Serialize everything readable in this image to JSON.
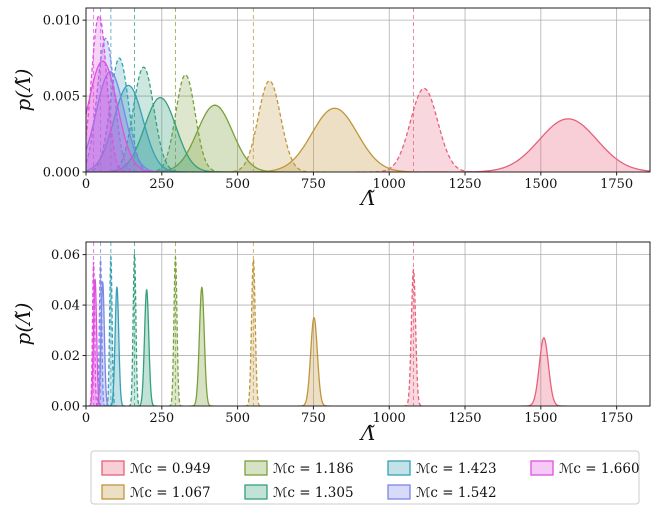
{
  "chart_data": [
    {
      "type": "area",
      "panel": "top",
      "xlabel": "Λ̃",
      "ylabel": "p(Λ̃)",
      "xlim": [
        0,
        1860
      ],
      "ylim": [
        0,
        0.0108
      ],
      "xticks": [
        0,
        250,
        500,
        750,
        1000,
        1250,
        1500,
        1750
      ],
      "yticks": [
        0.0,
        0.005,
        0.01
      ],
      "ytick_labels": [
        "0.000",
        "0.005",
        "0.010"
      ],
      "grid": true,
      "series": [
        {
          "name": "ℳc = 0.949",
          "color": "#e8607a",
          "true_value": 1080,
          "solid": {
            "mu": 1590,
            "sigma": 95,
            "peak": 0.0035
          },
          "dashed": {
            "mu": 1115,
            "sigma": 45,
            "peak": 0.0055
          }
        },
        {
          "name": "ℳc = 1.067",
          "color": "#c0963c",
          "true_value": 552,
          "solid": {
            "mu": 820,
            "sigma": 75,
            "peak": 0.0042
          },
          "dashed": {
            "mu": 605,
            "sigma": 37,
            "peak": 0.006
          }
        },
        {
          "name": "ℳc = 1.186",
          "color": "#7aa03a",
          "true_value": 295,
          "solid": {
            "mu": 425,
            "sigma": 58,
            "peak": 0.0044
          },
          "dashed": {
            "mu": 328,
            "sigma": 32,
            "peak": 0.0064
          }
        },
        {
          "name": "ℳc = 1.305",
          "color": "#34a07e",
          "true_value": 160,
          "solid": {
            "mu": 245,
            "sigma": 52,
            "peak": 0.0049
          },
          "dashed": {
            "mu": 190,
            "sigma": 34,
            "peak": 0.0069
          }
        },
        {
          "name": "ℳc = 1.423",
          "color": "#36a0b4",
          "true_value": 82,
          "solid": {
            "mu": 140,
            "sigma": 48,
            "peak": 0.0057
          },
          "dashed": {
            "mu": 110,
            "sigma": 30,
            "peak": 0.0075
          }
        },
        {
          "name": "ℳc = 1.542",
          "color": "#7a86e8",
          "true_value": 48,
          "solid": {
            "mu": 80,
            "sigma": 46,
            "peak": 0.0066
          },
          "dashed": {
            "mu": 65,
            "sigma": 28,
            "peak": 0.0088
          }
        },
        {
          "name": "ℳc = 1.660",
          "color": "#e050e0",
          "true_value": 25,
          "solid": {
            "mu": 55,
            "sigma": 48,
            "peak": 0.0073
          },
          "dashed": {
            "mu": 43,
            "sigma": 25,
            "peak": 0.0103
          }
        }
      ]
    },
    {
      "type": "area",
      "panel": "bottom",
      "xlabel": "Λ̃",
      "ylabel": "p(Λ̃)",
      "xlim": [
        0,
        1860
      ],
      "ylim": [
        0,
        0.065
      ],
      "xticks": [
        0,
        250,
        500,
        750,
        1000,
        1250,
        1500,
        1750
      ],
      "yticks": [
        0.0,
        0.02,
        0.04,
        0.06
      ],
      "ytick_labels": [
        "0.00",
        "0.02",
        "0.04",
        "0.06"
      ],
      "grid": true,
      "series": [
        {
          "name": "ℳc = 0.949",
          "color": "#e8607a",
          "true_value": 1080,
          "solid": {
            "mu": 1510,
            "sigma": 15,
            "peak": 0.027
          },
          "dashed": {
            "mu": 1080,
            "sigma": 7,
            "peak": 0.054
          }
        },
        {
          "name": "ℳc = 1.067",
          "color": "#c0963c",
          "true_value": 552,
          "solid": {
            "mu": 752,
            "sigma": 11,
            "peak": 0.035
          },
          "dashed": {
            "mu": 552,
            "sigma": 6,
            "peak": 0.058
          }
        },
        {
          "name": "ℳc = 1.186",
          "color": "#7aa03a",
          "true_value": 295,
          "solid": {
            "mu": 382,
            "sigma": 8,
            "peak": 0.047
          },
          "dashed": {
            "mu": 295,
            "sigma": 5,
            "peak": 0.059
          }
        },
        {
          "name": "ℳc = 1.305",
          "color": "#34a07e",
          "true_value": 160,
          "solid": {
            "mu": 200,
            "sigma": 7,
            "peak": 0.046
          },
          "dashed": {
            "mu": 160,
            "sigma": 4.5,
            "peak": 0.06
          }
        },
        {
          "name": "ℳc = 1.423",
          "color": "#36a0b4",
          "true_value": 82,
          "solid": {
            "mu": 102,
            "sigma": 6,
            "peak": 0.047
          },
          "dashed": {
            "mu": 82,
            "sigma": 4,
            "peak": 0.059
          }
        },
        {
          "name": "ℳc = 1.542",
          "color": "#7a86e8",
          "true_value": 48,
          "solid": {
            "mu": 55,
            "sigma": 5.5,
            "peak": 0.049
          },
          "dashed": {
            "mu": 48,
            "sigma": 3.8,
            "peak": 0.058
          }
        },
        {
          "name": "ℳc = 1.660",
          "color": "#e050e0",
          "true_value": 25,
          "solid": {
            "mu": 30,
            "sigma": 5,
            "peak": 0.05
          },
          "dashed": {
            "mu": 25,
            "sigma": 3.5,
            "peak": 0.057
          }
        }
      ]
    }
  ],
  "legend": {
    "placement": "bottom",
    "columns": 4,
    "entries": [
      {
        "label": "ℳc = 0.949",
        "color": "#e8607a"
      },
      {
        "label": "ℳc = 1.186",
        "color": "#7aa03a"
      },
      {
        "label": "ℳc = 1.423",
        "color": "#36a0b4"
      },
      {
        "label": "ℳc = 1.660",
        "color": "#e050e0"
      },
      {
        "label": "ℳc = 1.067",
        "color": "#c0963c"
      },
      {
        "label": "ℳc = 1.305",
        "color": "#34a07e"
      },
      {
        "label": "ℳc = 1.542",
        "color": "#7a86e8"
      }
    ]
  }
}
